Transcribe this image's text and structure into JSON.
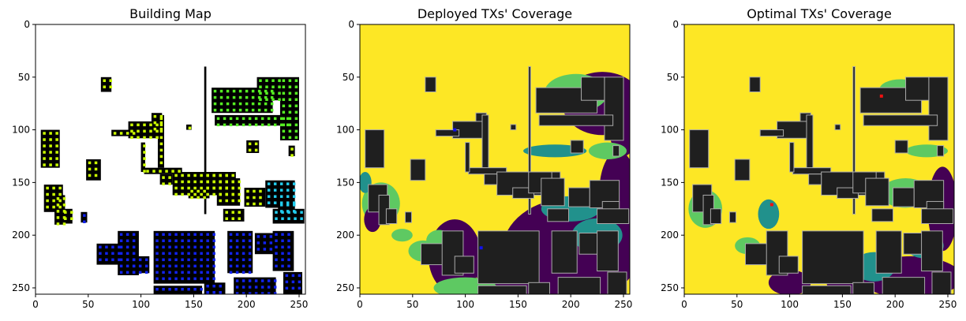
{
  "chart_data": [
    {
      "type": "heatmap",
      "title": "Building Map",
      "xlabel": "",
      "ylabel": "",
      "xlim": [
        0,
        256
      ],
      "ylim": [
        256,
        0
      ],
      "xticks": [
        0,
        50,
        100,
        150,
        200,
        250
      ],
      "yticks": [
        0,
        50,
        100,
        150,
        200,
        250
      ],
      "background": "#ffffff",
      "colors": {
        "building": "#000000",
        "marker_high": "#ccff00",
        "marker_mid": "#55ee22",
        "marker_cyan": "#22ccee",
        "marker_low": "#1122ee"
      },
      "overlay": "markers"
    },
    {
      "type": "heatmap",
      "title": "Deployed TXs' Coverage",
      "xlabel": "",
      "ylabel": "",
      "xlim": [
        0,
        256
      ],
      "ylim": [
        256,
        0
      ],
      "xticks": [
        0,
        50,
        100,
        150,
        200,
        250
      ],
      "yticks": [
        0,
        50,
        100,
        150,
        200,
        250
      ],
      "background": "#fde725",
      "colors": {
        "building": "#1f1f1f",
        "outline": "#aaaaaa",
        "coverage_high": "#fde725",
        "coverage_mid": "#5ec962",
        "coverage_teal": "#21918c",
        "coverage_low": "#440154"
      },
      "tx_color": "#1111ee",
      "tx_points": [
        [
          90,
          100
        ],
        [
          115,
          212
        ]
      ],
      "overlay": "deployed"
    },
    {
      "type": "heatmap",
      "title": "Optimal TXs' Coverage",
      "xlabel": "",
      "ylabel": "",
      "xlim": [
        0,
        256
      ],
      "ylim": [
        256,
        0
      ],
      "xticks": [
        0,
        50,
        100,
        150,
        200,
        250
      ],
      "yticks": [
        0,
        50,
        100,
        150,
        200,
        250
      ],
      "background": "#fde725",
      "colors": {
        "building": "#1f1f1f",
        "outline": "#aaaaaa",
        "coverage_high": "#fde725",
        "coverage_mid": "#5ec962",
        "coverage_teal": "#21918c",
        "coverage_low": "#440154"
      },
      "tx_color": "#ee1111",
      "tx_points": [
        [
          187,
          68
        ],
        [
          83,
          171
        ]
      ],
      "overlay": "optimal"
    }
  ]
}
